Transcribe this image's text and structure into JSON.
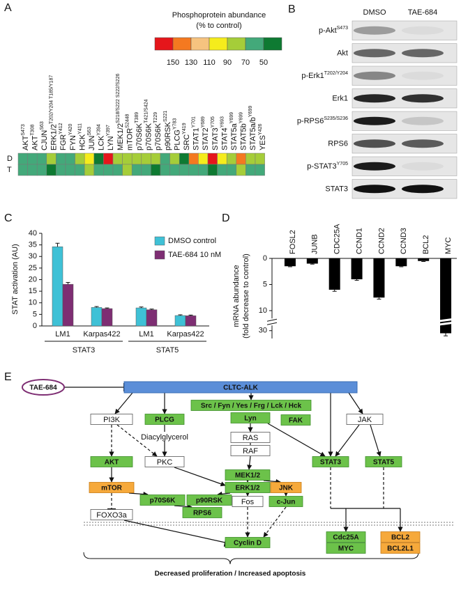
{
  "figure_labels": [
    "A",
    "B",
    "C",
    "D",
    "E"
  ],
  "chart_data": [
    {
      "type": "heatmap",
      "legend_title": [
        "Phosphoprotein abundance",
        "(% to control)"
      ],
      "legend_ticks": [
        150,
        130,
        110,
        90,
        70,
        50
      ],
      "legend_colors": [
        "#e5161b",
        "#f47920",
        "#f6c37f",
        "#f5ec1c",
        "#a5cd39",
        "#43a97a",
        "#0e7a32"
      ],
      "columns": [
        {
          "name": "AKT",
          "site": "S473"
        },
        {
          "name": "AKT",
          "site": "T308"
        },
        {
          "name": "CJUN",
          "site": "S63"
        },
        {
          "name": "ERK1/2",
          "site": "T202/Y204 T185/Y187"
        },
        {
          "name": "FGR",
          "site": "Y412"
        },
        {
          "name": "FYN",
          "site": "Y420"
        },
        {
          "name": "HCK",
          "site": "Y411"
        },
        {
          "name": "JUN",
          "site": "S63"
        },
        {
          "name": "LCK",
          "site": "Y394"
        },
        {
          "name": "LYN",
          "site": "Y397"
        },
        {
          "name": "MEK1/2",
          "site": "S218/S222 S222/S226"
        },
        {
          "name": "mTOR",
          "site": "S2448"
        },
        {
          "name": "p70S6K",
          "site": "T389"
        },
        {
          "name": "p70S6K",
          "site": "T421/S424"
        },
        {
          "name": "p70S6K",
          "site": "T229"
        },
        {
          "name": "p90RSK",
          "site": "S221"
        },
        {
          "name": "PLCG",
          "site": "Y783"
        },
        {
          "name": "SRC",
          "site": "Y419"
        },
        {
          "name": "STAT1",
          "site": "Y701"
        },
        {
          "name": "STAT2",
          "site": "Y689"
        },
        {
          "name": "STAT3",
          "site": "Y705"
        },
        {
          "name": "STAT4",
          "site": "Y693"
        },
        {
          "name": "STAT5a",
          "site": "Y699"
        },
        {
          "name": "STAT5b",
          "site": "Y699"
        },
        {
          "name": "STAT5a/b",
          "site": "Y699"
        },
        {
          "name": "YES",
          "site": "Y426"
        }
      ],
      "rows": [
        "D",
        "T"
      ],
      "values": [
        [
          60,
          60,
          65,
          75,
          60,
          60,
          80,
          100,
          40,
          160,
          80,
          80,
          80,
          80,
          80,
          60,
          80,
          40,
          140,
          100,
          160,
          100,
          80,
          140,
          80,
          80
        ],
        [
          60,
          65,
          60,
          40,
          60,
          60,
          60,
          80,
          60,
          60,
          60,
          80,
          60,
          60,
          40,
          60,
          60,
          60,
          60,
          60,
          40,
          60,
          60,
          80,
          60,
          60
        ]
      ]
    },
    {
      "type": "bar",
      "ylabel": "STAT activation (AU)",
      "groups": [
        {
          "name": "STAT3",
          "categories": [
            "LM1",
            "Karpas422"
          ]
        },
        {
          "name": "STAT5",
          "categories": [
            "LM1",
            "Karpas422"
          ]
        }
      ],
      "series": [
        {
          "name": "DMSO control",
          "color": "#3fc1d6",
          "values": [
            34.2,
            8.0,
            7.8,
            4.5
          ],
          "errors": [
            1.5,
            0.4,
            0.4,
            0.3
          ]
        },
        {
          "name": "TAE-684 10 nM",
          "color": "#7e2e73",
          "values": [
            18.0,
            7.5,
            7.0,
            4.4
          ],
          "errors": [
            0.8,
            0.3,
            0.3,
            0.3
          ]
        }
      ],
      "ylim": [
        0,
        40
      ],
      "yticks": [
        0,
        5,
        10,
        15,
        20,
        25,
        30,
        35,
        40
      ]
    },
    {
      "type": "bar_down",
      "ylabel": [
        "mRNA abundance",
        "(fold decrease to control)"
      ],
      "categories": [
        "FOSL2",
        "JUNB",
        "CDC25A",
        "CCND1",
        "CCND2",
        "CCND3",
        "BCL2",
        "MYC"
      ],
      "values": [
        1.5,
        1.0,
        6.0,
        4.0,
        7.5,
        1.5,
        0.5,
        30.5
      ],
      "errors": [
        0.1,
        0.1,
        0.3,
        0.2,
        0.3,
        0.1,
        0.1,
        0.5
      ],
      "color": "#000000",
      "ylim": [
        0,
        31.5
      ],
      "ybreak": [
        11.5,
        29
      ],
      "yticks": [
        0,
        5,
        10,
        30
      ]
    }
  ],
  "blot": {
    "columns": [
      "DMSO",
      "TAE-684"
    ],
    "rows": [
      {
        "label": "p-Akt",
        "site": "S473"
      },
      {
        "label": "Akt"
      },
      {
        "label": "p-Erk1",
        "site": "T202/Y204"
      },
      {
        "label": "Erk1"
      },
      {
        "label": "p-RPS6",
        "site": "S235/S236"
      },
      {
        "label": "RPS6"
      },
      {
        "label": "p-STAT3",
        "site": "Y705"
      },
      {
        "label": "STAT3"
      }
    ]
  },
  "diagram": {
    "nodes": [
      "TAE-684",
      "CLTC-ALK",
      "Src / Fyn / Yes / Frg / Lck / Hck",
      "PI3K",
      "PLCG",
      "Lyn",
      "FAK",
      "JAK",
      "Diacylglycerol",
      "RAS",
      "RAF",
      "PKC",
      "AKT",
      "MEK1/2",
      "STAT3",
      "STAT5",
      "mTOR",
      "ERK1/2",
      "JNK",
      "p70S6K",
      "p90RSK",
      "Fos",
      "c-Jun",
      "FOXO3a",
      "RPS6",
      "Cyclin D",
      "Cdc25A",
      "MYC",
      "BCL2",
      "BCL2L1"
    ],
    "outcome": "Decreased proliferation / Increased apoptosis"
  }
}
